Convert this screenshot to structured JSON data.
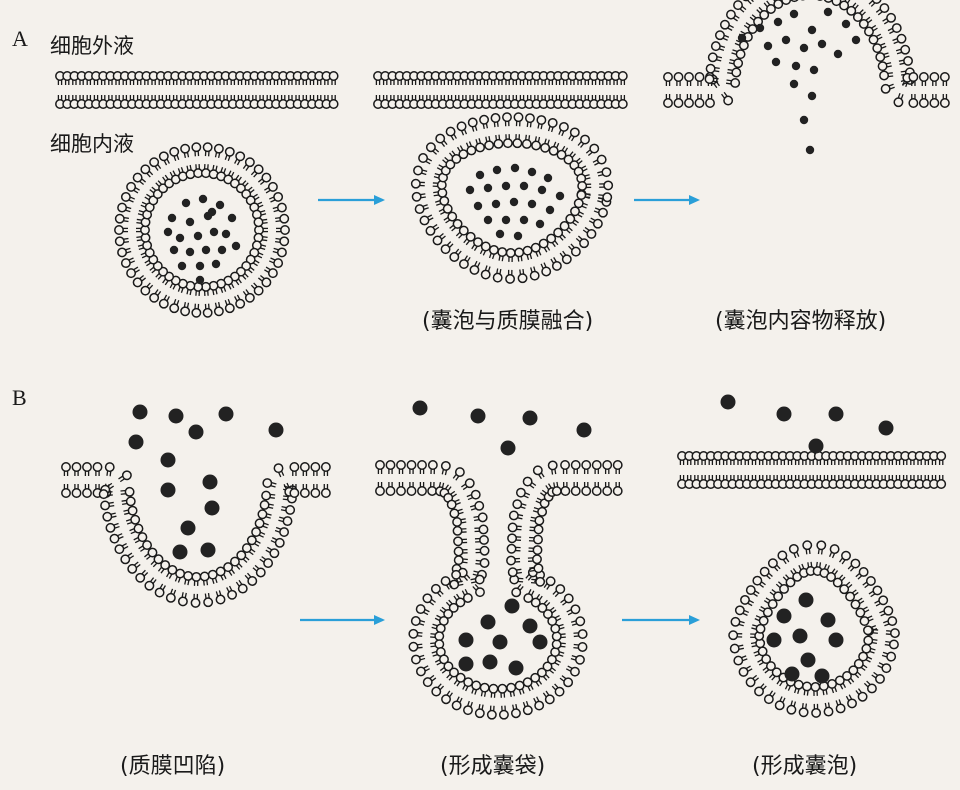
{
  "panel_a": {
    "letter": "A",
    "outside_label": "细胞外液",
    "inside_label": "细胞内液",
    "captions": [
      "",
      "(囊泡与质膜融合)",
      "(囊泡内容物释放)"
    ]
  },
  "panel_b": {
    "letter": "B",
    "captions": [
      "(质膜凹陷)",
      "(形成囊袋)",
      "(形成囊泡)"
    ]
  },
  "colors": {
    "arrow": "#2a9fd8",
    "ink": "#1a1a1a",
    "paper": "#f4f1ec"
  }
}
